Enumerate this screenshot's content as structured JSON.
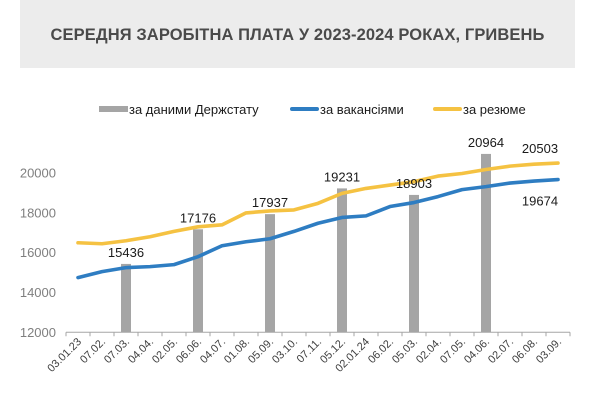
{
  "title": "СЕРЕДНЯ ЗАРОБІТНА ПЛАТА У 2023-2024 РОКАХ, ГРИВЕНЬ",
  "legend": [
    {
      "label": "за даними Держстату",
      "color": "#a5a5a5",
      "kind": "bar"
    },
    {
      "label": "за вакансіями",
      "color": "#2e7dc2",
      "kind": "line"
    },
    {
      "label": "за резюме",
      "color": "#f5c242",
      "kind": "line"
    }
  ],
  "chart_data": {
    "type": "bar+line",
    "title": "СЕРЕДНЯ ЗАРОБІТНА ПЛАТА У 2023-2024 РОКАХ, ГРИВЕНЬ",
    "xlabel": "",
    "ylabel": "",
    "ylim": [
      12000,
      21000
    ],
    "yticks": [
      12000,
      14000,
      16000,
      18000,
      20000
    ],
    "grid": false,
    "legend_position": "top",
    "categories": [
      "03.01.23",
      "07.02.",
      "07.03.",
      "04.04.",
      "02.05.",
      "06.06.",
      "04.07.",
      "01.08.",
      "05.09.",
      "03.10.",
      "07.11.",
      "05.12.",
      "02.01.24",
      "06.02.",
      "05.03.",
      "02.04.",
      "07.05.",
      "04.06.",
      "02.07.",
      "06.08.",
      "03.09."
    ],
    "series": [
      {
        "name": "за даними Держстату",
        "type": "bar",
        "color": "#a5a5a5",
        "values": [
          null,
          null,
          15436,
          null,
          null,
          17176,
          null,
          null,
          17937,
          null,
          null,
          19231,
          null,
          null,
          18903,
          null,
          null,
          20964,
          null,
          null,
          null
        ],
        "labels": [
          null,
          null,
          "15436",
          null,
          null,
          "17176",
          null,
          null,
          "17937",
          null,
          null,
          "19231",
          null,
          null,
          "18903",
          null,
          null,
          "20964",
          null,
          null,
          null
        ]
      },
      {
        "name": "за вакансіями",
        "type": "line",
        "color": "#2e7dc2",
        "values": [
          14750,
          15050,
          15250,
          15300,
          15400,
          15800,
          16350,
          16550,
          16700,
          17070,
          17480,
          17770,
          17850,
          18320,
          18520,
          18820,
          19170,
          19320,
          19500,
          19600,
          19674
        ],
        "end_label": "19674"
      },
      {
        "name": "за резюме",
        "type": "line",
        "color": "#f5c242",
        "values": [
          16500,
          16450,
          16600,
          16800,
          17070,
          17300,
          17400,
          18000,
          18100,
          18150,
          18480,
          18980,
          19230,
          19400,
          19570,
          19850,
          19980,
          20180,
          20350,
          20450,
          20503
        ],
        "end_label": "20503"
      }
    ]
  }
}
